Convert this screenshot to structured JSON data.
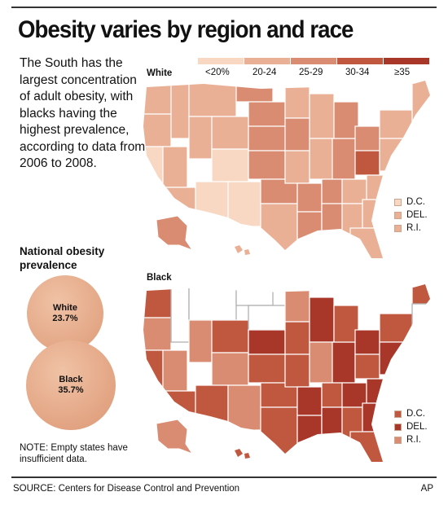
{
  "title": "Obesity varies by region and race",
  "intro": "The South has the largest concentration of adult obesity, with blacks having the highest prevalence, according to data from 2006 to 2008.",
  "legend": {
    "items": [
      {
        "label": "<20%",
        "color": "#f8d8c3"
      },
      {
        "label": "20-24",
        "color": "#eab096"
      },
      {
        "label": "25-29",
        "color": "#d98c72"
      },
      {
        "label": "30-34",
        "color": "#c0583f"
      },
      {
        "label": "≥35",
        "color": "#a8372a"
      }
    ]
  },
  "maps": {
    "white": {
      "label": "White",
      "dc": "D.C.",
      "del": "DEL.",
      "ri": "R.I.",
      "dc_color": "#f8d8c3",
      "del_color": "#eab096",
      "ri_color": "#eab096"
    },
    "black": {
      "label": "Black",
      "dc": "D.C.",
      "del": "DEL.",
      "ri": "R.I.",
      "dc_color": "#c0583f",
      "del_color": "#a8372a",
      "ri_color": "#d98c72"
    }
  },
  "national": {
    "title": "National obesity prevalence",
    "white_label": "White",
    "white_value": "23.7%",
    "black_label": "Black",
    "black_value": "35.7%"
  },
  "note": "NOTE: Empty states have insufficient data.",
  "source": "SOURCE: Centers for Disease Control and Prevention",
  "credit": "AP"
}
